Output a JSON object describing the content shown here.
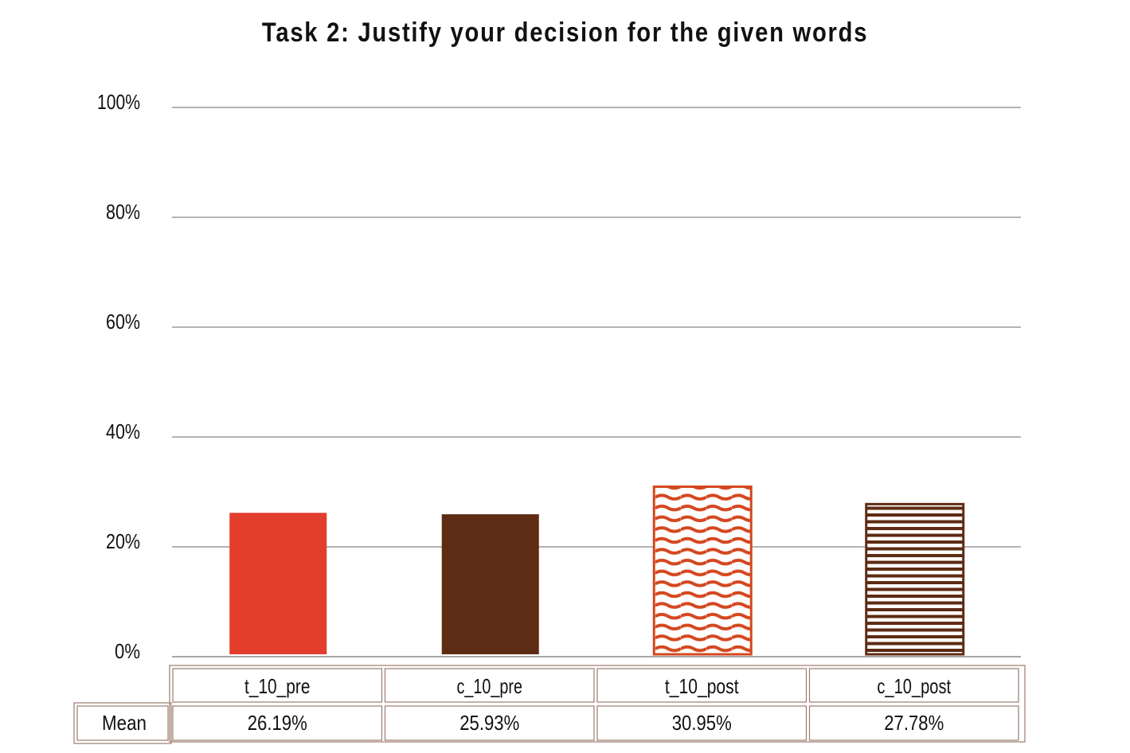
{
  "chart_data": {
    "type": "bar",
    "title": "Task 2: Justify your decision for the given words",
    "xlabel": "",
    "ylabel": "",
    "ylim": [
      0,
      1
    ],
    "yticks": [
      "0%",
      "20%",
      "40%",
      "60%",
      "80%",
      "100%"
    ],
    "grid": true,
    "categories": [
      "t_10_pre",
      "c_10_pre",
      "t_10_post",
      "c_10_post"
    ],
    "values": [
      0.2619,
      0.2593,
      0.3095,
      0.2778
    ],
    "patterns": [
      "solid",
      "solid",
      "wave",
      "horizontal-stripes"
    ],
    "colors": [
      "#e33d2e",
      "#5e2b14",
      "#d4471f",
      "#5e2b14"
    ],
    "table": {
      "row_label": "Mean",
      "cells": [
        "26.19%",
        "25.93%",
        "30.95%",
        "27.78%"
      ]
    }
  }
}
